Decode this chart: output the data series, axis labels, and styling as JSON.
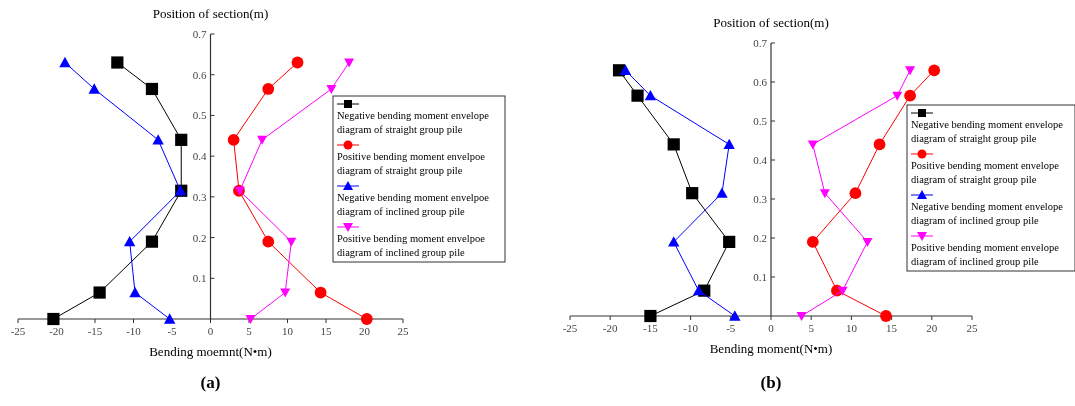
{
  "chart_data": [
    {
      "type": "line",
      "title": "Position of section(m)",
      "xlabel": "Bending moemnt(N•m)",
      "annotations": [
        "(a)"
      ],
      "xlim": [
        -25,
        25
      ],
      "xticks": [
        -25,
        -20,
        -15,
        -10,
        -5,
        0,
        5,
        10,
        15,
        20,
        25
      ],
      "ylim": [
        0,
        0.7
      ],
      "yticks": [
        0.1,
        0.2,
        0.3,
        0.4,
        0.5,
        0.6,
        0.7
      ],
      "grid": false,
      "legend": "right",
      "line_style": "solid",
      "series": [
        {
          "name": "Negative bending moment envelope diagram of straight group pile",
          "color": "#000000",
          "marker": "square",
          "x": [
            -12.1,
            -7.6,
            -3.8,
            -3.8,
            -7.6,
            -14.4,
            -20.4
          ],
          "values": [
            0.63,
            0.565,
            0.44,
            0.315,
            0.19,
            0.065,
            0
          ]
        },
        {
          "name": "Positive bending moment envelpoe diagram of straight group pile",
          "color": "#ff0000",
          "marker": "circle",
          "x": [
            11.3,
            7.5,
            3.0,
            3.7,
            7.5,
            14.3,
            20.3
          ],
          "values": [
            0.63,
            0.565,
            0.44,
            0.315,
            0.19,
            0.065,
            0
          ]
        },
        {
          "name": "Negative bending moment envelpoe diagram of inclined group pile",
          "color": "#0000ff",
          "marker": "triangle",
          "x": [
            -18.9,
            -15.1,
            -6.8,
            -3.9,
            -10.5,
            -9.8,
            -5.3
          ],
          "values": [
            0.63,
            0.565,
            0.44,
            0.315,
            0.19,
            0.065,
            0
          ]
        },
        {
          "name": "Positive bending moment envelpoe diagram of inclined group pile",
          "color": "#ff00ff",
          "marker": "triangle-down",
          "x": [
            18.0,
            15.7,
            6.7,
            3.8,
            10.5,
            9.7,
            5.2
          ],
          "values": [
            0.63,
            0.565,
            0.44,
            0.315,
            0.19,
            0.065,
            0
          ]
        }
      ]
    },
    {
      "type": "line",
      "title": "Position of section(m)",
      "xlabel": "Bending moment(N•m)",
      "annotations": [
        "(b)"
      ],
      "xlim": [
        -25,
        25
      ],
      "xticks": [
        -25,
        -20,
        -15,
        -10,
        -5,
        0,
        5,
        10,
        15,
        20,
        25
      ],
      "ylim": [
        0,
        0.7
      ],
      "yticks": [
        0.1,
        0.2,
        0.3,
        0.4,
        0.5,
        0.6,
        0.7
      ],
      "grid": false,
      "legend": "right",
      "line_style": "solid",
      "series": [
        {
          "name": "Negative bending moment envelope diagram of straight group pile",
          "color": "#000000",
          "marker": "square",
          "x": [
            -18.9,
            -16.6,
            -12.1,
            -9.8,
            -5.2,
            -8.3,
            -15.0
          ],
          "values": [
            0.63,
            0.565,
            0.44,
            0.315,
            0.19,
            0.065,
            0
          ]
        },
        {
          "name": "Positive bending moment envelope diagram of straight group pile",
          "color": "#ff0000",
          "marker": "circle",
          "x": [
            20.3,
            17.3,
            13.5,
            10.5,
            5.2,
            8.2,
            14.3
          ],
          "values": [
            0.63,
            0.565,
            0.44,
            0.315,
            0.19,
            0.065,
            0
          ]
        },
        {
          "name": "Negative bending moment envelope diagram of inclined group pile",
          "color": "#0000ff",
          "marker": "triangle",
          "x": [
            -18.1,
            -15.0,
            -5.2,
            -6.1,
            -12.1,
            -9.0,
            -4.5
          ],
          "values": [
            0.63,
            0.565,
            0.44,
            0.315,
            0.19,
            0.065,
            0
          ]
        },
        {
          "name": "Positive bending moment envelope diagram of inclined group pile",
          "color": "#ff00ff",
          "marker": "triangle-down",
          "x": [
            17.3,
            15.7,
            5.2,
            6.7,
            12.0,
            8.9,
            3.8
          ],
          "values": [
            0.63,
            0.565,
            0.44,
            0.315,
            0.19,
            0.065,
            0
          ]
        }
      ]
    }
  ]
}
